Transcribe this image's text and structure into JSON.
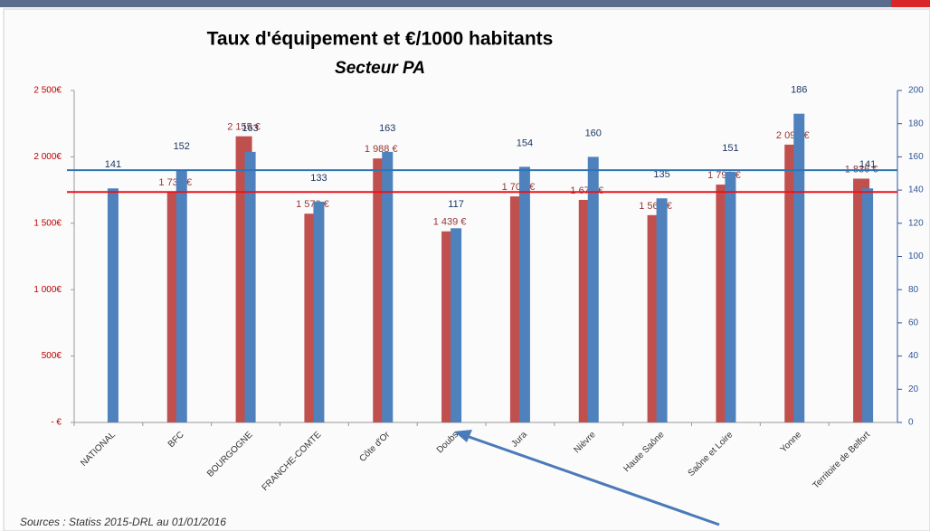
{
  "chart_data": {
    "type": "bar",
    "title": "Taux d'équipement et €/1000 habitants",
    "subtitle": "Secteur PA",
    "categories": [
      "NATIONAL",
      "BFC",
      "BOURGOGNE",
      "FRANCHE-COMTE",
      "Côte d'Or",
      "Doubs",
      "Jura",
      "Nièvre",
      "Haute Saône",
      "Saône et Loire",
      "Yonne",
      "Territoire de Belfort"
    ],
    "series": [
      {
        "name": "€/1000 habitants",
        "color": "#c0504d",
        "axis": "y",
        "values": [
          null,
          1735,
          2155,
          1572,
          1988,
          1439,
          1702,
          1676,
          1561,
          1791,
          2092,
          1836
        ],
        "value_labels": [
          null,
          "1 735 €",
          "2 155 €",
          "1 572 €",
          "1 988 €",
          "1 439 €",
          "1 702 €",
          "1 676 €",
          "1 561 €",
          "1 791 €",
          "2 092 €",
          "1 836 €"
        ]
      },
      {
        "name": "Taux d'équipement",
        "color": "#4f81bd",
        "axis": "y2",
        "values": [
          141,
          152,
          163,
          133,
          163,
          117,
          154,
          160,
          135,
          151,
          186,
          141
        ]
      }
    ],
    "ylim": [
      0,
      2500
    ],
    "yticks": [
      {
        "value": 0,
        "label": "- €"
      },
      {
        "value": 500,
        "label": "500€"
      },
      {
        "value": 1000,
        "label": "1 000€"
      },
      {
        "value": 1500,
        "label": "1 500€"
      },
      {
        "value": 2000,
        "label": "2 000€"
      },
      {
        "value": 2500,
        "label": "2 500€"
      }
    ],
    "y2lim": [
      0,
      200
    ],
    "y2ticks": [
      0,
      20,
      40,
      60,
      80,
      100,
      120,
      140,
      160,
      180,
      200
    ],
    "reference_lines": [
      {
        "value": 1735,
        "axis": "y",
        "color": "#e8141b"
      },
      {
        "value": 152,
        "axis": "y2",
        "color": "#2e75b6"
      }
    ],
    "annotation": "Sources : Statiss 2015-DRL au 01/01/2016",
    "grid": false
  }
}
